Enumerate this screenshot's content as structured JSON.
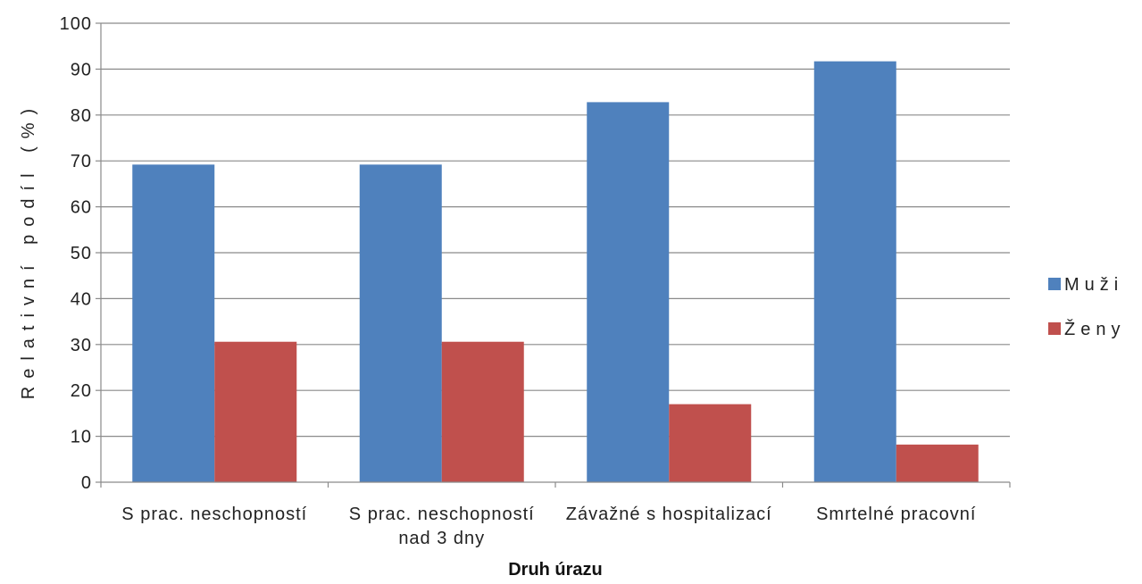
{
  "chart_data": {
    "type": "bar",
    "xlabel": "Druh úrazu",
    "ylabel": "Relativní podíl (%)",
    "ylim": [
      0,
      100
    ],
    "yticks": [
      0,
      10,
      20,
      30,
      40,
      50,
      60,
      70,
      80,
      90,
      100
    ],
    "grid": true,
    "legend_position": "right",
    "categories": [
      [
        "S prac. neschopností"
      ],
      [
        "S prac. neschopností",
        "nad 3 dny"
      ],
      [
        "Závažné s hospitalizací"
      ],
      [
        "Smrtelné pracovní"
      ]
    ],
    "series": [
      {
        "name": "Muži",
        "color": "#4f81bd",
        "values": [
          69.2,
          69.2,
          82.8,
          91.7
        ]
      },
      {
        "name": "Ženy",
        "color": "#c0504d",
        "values": [
          30.6,
          30.6,
          17.0,
          8.2
        ]
      }
    ]
  }
}
